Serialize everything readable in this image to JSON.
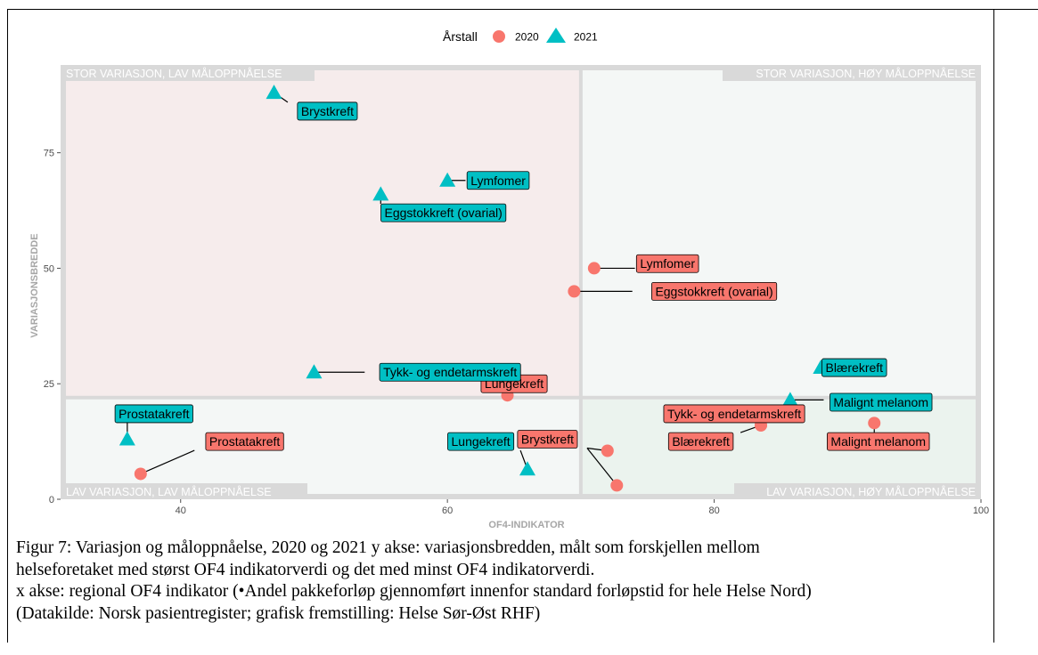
{
  "chart_data": {
    "type": "scatter",
    "xlabel": "OF4-INDIKATOR",
    "ylabel": "VARIASJONSBREDDE",
    "xlim": [
      31,
      100
    ],
    "ylim": [
      0,
      94
    ],
    "x_ticks": [
      40,
      60,
      80,
      100
    ],
    "y_ticks": [
      0,
      25,
      50,
      75
    ],
    "x_tick_labels": [
      "40",
      "60",
      "80",
      "100"
    ],
    "y_tick_labels": [
      "0",
      "25",
      "50",
      "75"
    ],
    "divider_x": 70,
    "divider_y": 22,
    "grid": false,
    "legend": {
      "title": "Årstall",
      "placement": "top",
      "entries": [
        "2020",
        "2021"
      ]
    },
    "quadrants": {
      "top_left": "STOR VARIASJON, LAV MÅLOPPNÅELSE",
      "top_right": "STOR VARIASJON, HØY MÅLOPPNÅELSE",
      "bottom_left": "LAV VARIASJON, LAV MÅLOPPNÅELSE",
      "bottom_right": "LAV VARIASJON, HØY MÅLOPPNÅELSE"
    },
    "series": [
      {
        "name": "2020",
        "shape": "circle",
        "color": "#F8766D",
        "points": [
          {
            "label": "Lymfomer",
            "x": 71,
            "y": 50,
            "lx": 76.5,
            "ly": 51
          },
          {
            "label": "Eggstokkreft (ovarial)",
            "x": 69.5,
            "y": 45,
            "lx": 80,
            "ly": 45
          },
          {
            "label": "Lungekreft",
            "x": 64.5,
            "y": 22.5,
            "lx": 65,
            "ly": 25
          },
          {
            "label": "Tykk- og endetarmskreft",
            "x": 83.5,
            "y": 16,
            "lx": 81.5,
            "ly": 18.5
          },
          {
            "label": "Blærekreft",
            "x": 83.5,
            "y": 16,
            "lx": 79,
            "ly": 12.5
          },
          {
            "label": "Malignt melanom",
            "x": 92,
            "y": 16.5,
            "lx": 92.3,
            "ly": 12.5
          },
          {
            "label": "Brystkreft",
            "x": 72,
            "y": 10.5,
            "lx": 67.5,
            "ly": 13
          },
          {
            "label": "Brystkreft",
            "x": 72.7,
            "y": 3,
            "lx": 67.5,
            "ly": 13
          },
          {
            "label": "Prostatakreft",
            "x": 37,
            "y": 5.5,
            "lx": 44.8,
            "ly": 12.5
          }
        ]
      },
      {
        "name": "2021",
        "shape": "triangle",
        "color": "#00BFC4",
        "points": [
          {
            "label": "Brystkreft",
            "x": 47,
            "y": 88,
            "lx": 51,
            "ly": 84
          },
          {
            "label": "Lymfomer",
            "x": 60,
            "y": 69,
            "lx": 63.8,
            "ly": 69
          },
          {
            "label": "Eggstokkreft (ovarial)",
            "x": 55,
            "y": 66,
            "lx": 59.7,
            "ly": 62
          },
          {
            "label": "Tykk- og endetarmskreft",
            "x": 50,
            "y": 27.5,
            "lx": 60.2,
            "ly": 27.5
          },
          {
            "label": "Blærekreft",
            "x": 88,
            "y": 28.5,
            "lx": 90.5,
            "ly": 28.5
          },
          {
            "label": "Malignt melanom",
            "x": 85.7,
            "y": 21.5,
            "lx": 92.5,
            "ly": 21
          },
          {
            "label": "Prostatakreft",
            "x": 36,
            "y": 13,
            "lx": 38,
            "ly": 18.5
          },
          {
            "label": "Lungekreft",
            "x": 66,
            "y": 6.5,
            "lx": 62.5,
            "ly": 12.5
          }
        ]
      }
    ]
  },
  "caption": {
    "line1": "Figur 7: Variasjon og måloppnåelse, 2020 og 2021 y akse: variasjonsbredden, målt som forskjellen mellom",
    "line2": "helseforetaket med størst OF4 indikatorverdi og det med minst OF4 indikatorverdi.",
    "line3": "x akse: regional OF4 indikator (•Andel pakkeforløp gjennomført innenfor standard forløpstid for hele Helse Nord)",
    "line4": "(Datakilde: Norsk pasientregister; grafisk fremstilling: Helse Sør-Øst RHF)"
  }
}
